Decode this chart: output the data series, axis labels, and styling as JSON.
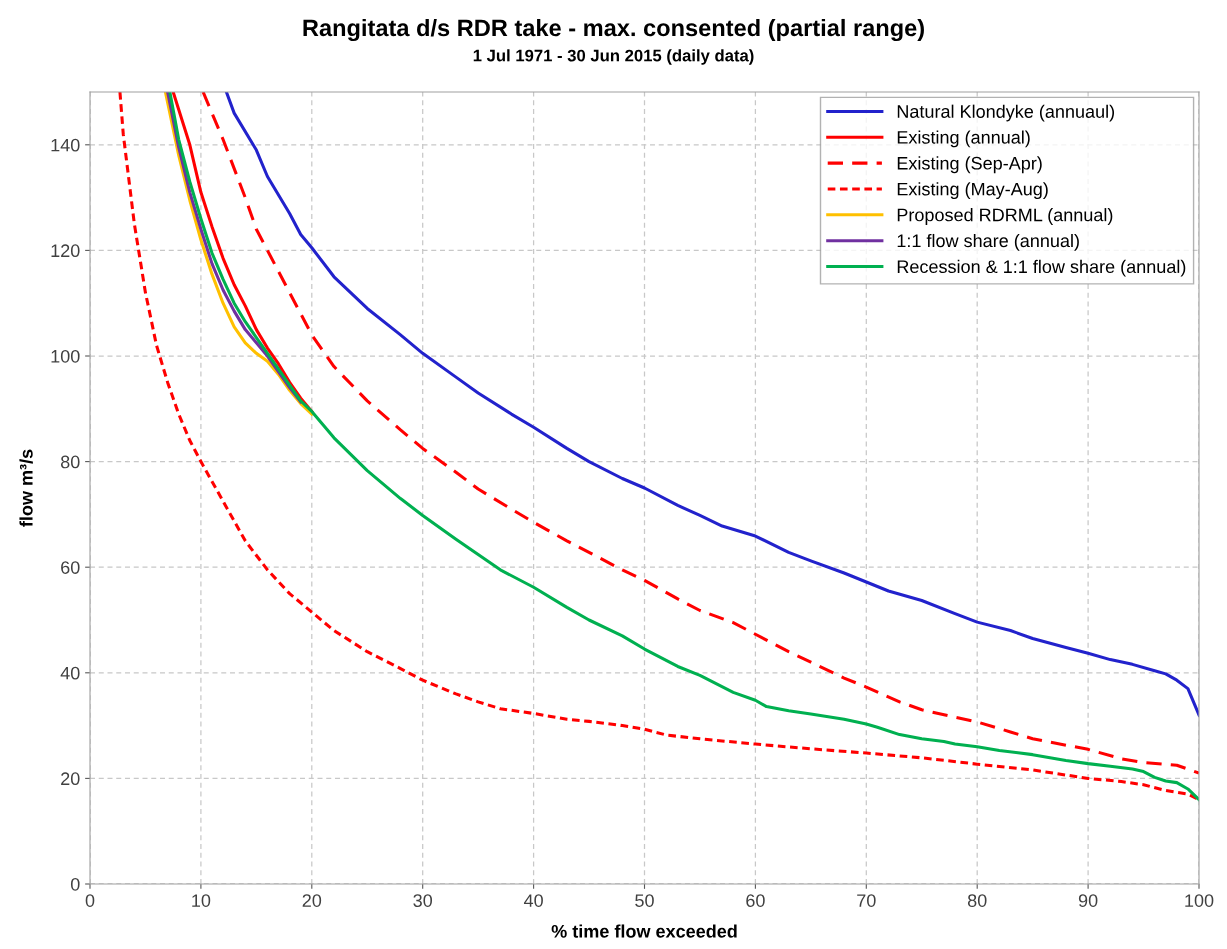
{
  "chart_data": {
    "type": "line",
    "title": "Rangitata d/s RDR take - max. consented (partial range)",
    "subtitle": "1 Jul 1971 - 30 Jun 2015 (daily data)",
    "xlabel": "% time flow exceeded",
    "ylabel": "flow m³/s",
    "xlim": [
      0,
      100
    ],
    "ylim": [
      0,
      150
    ],
    "xticks": [
      0,
      10,
      20,
      30,
      40,
      50,
      60,
      70,
      80,
      90,
      100
    ],
    "yticks": [
      0,
      20,
      40,
      60,
      80,
      100,
      120,
      140
    ],
    "grid": true,
    "legend": "top right",
    "series": [
      {
        "name": "Natural Klondyke (annuaul)",
        "color": "#2222cc",
        "line_style": "solid",
        "x": [
          12.3,
          13,
          15,
          16,
          18,
          19,
          20,
          22,
          25,
          28,
          30,
          33,
          35,
          38,
          40,
          43,
          45,
          48,
          50,
          53,
          55,
          57,
          60,
          63,
          65,
          68,
          70,
          72,
          75,
          78,
          80,
          83,
          85,
          88,
          90,
          92,
          94,
          96,
          97,
          98,
          99,
          100
        ],
        "values": [
          150,
          146,
          139,
          134,
          127,
          123,
          120.5,
          115,
          109,
          104,
          100.5,
          96,
          93,
          89,
          86.5,
          82.5,
          80,
          76.8,
          75,
          71.7,
          69.8,
          67.8,
          65.9,
          62.8,
          61.2,
          58.9,
          57.2,
          55.5,
          53.7,
          51.2,
          49.6,
          48,
          46.5,
          44.8,
          43.7,
          42.5,
          41.6,
          40.4,
          39.8,
          38.6,
          37,
          32
        ]
      },
      {
        "name": "Existing (annual)",
        "color": "#ff0000",
        "line_style": "solid",
        "x": [
          7.5,
          9,
          10,
          11,
          12,
          13,
          14,
          15,
          16,
          17,
          18,
          19,
          20
        ],
        "values": [
          150,
          140,
          131,
          124.5,
          118.5,
          113.5,
          109.5,
          105,
          101.5,
          98.5,
          95,
          92,
          89.5
        ]
      },
      {
        "name": "Existing (Sep-Apr)",
        "color": "#ff0000",
        "line_style": "dashed",
        "x": [
          10.2,
          12,
          14,
          15,
          17,
          20,
          22,
          25,
          28,
          30,
          33,
          35,
          38,
          40,
          43,
          45,
          48,
          50,
          53,
          55,
          58,
          60,
          63,
          65,
          68,
          70,
          73,
          75,
          78,
          80,
          83,
          85,
          88,
          90,
          93,
          95,
          98,
          100
        ],
        "values": [
          150,
          141,
          130,
          124,
          116,
          104,
          98,
          91.5,
          86,
          82.5,
          78,
          74.8,
          71,
          68.5,
          65,
          62.8,
          59.5,
          57.5,
          54,
          51.8,
          49.5,
          47.3,
          44,
          42,
          39,
          37.3,
          34.5,
          33,
          31.6,
          30.7,
          28.8,
          27.5,
          26.3,
          25.5,
          23.7,
          23,
          22.5,
          21
        ]
      },
      {
        "name": "Existing (May-Aug)",
        "color": "#ff0000",
        "line_style": "dotted",
        "x": [
          2.7,
          3,
          4,
          5,
          6,
          7,
          8,
          9,
          10,
          12,
          14,
          16,
          18,
          20,
          22,
          25,
          28,
          30,
          33,
          35,
          37,
          40,
          43,
          45,
          48,
          50,
          52,
          55,
          60,
          65,
          70,
          75,
          80,
          85,
          90,
          93,
          95,
          97,
          99,
          100
        ],
        "values": [
          150,
          142,
          125,
          112,
          102,
          95,
          89,
          84,
          80,
          72.5,
          65,
          59.5,
          55,
          51.5,
          48,
          44,
          40.8,
          38.6,
          36,
          34.5,
          33.2,
          32.3,
          31.2,
          30.8,
          30,
          29.3,
          28.2,
          27.5,
          26.5,
          25.6,
          24.8,
          23.9,
          22.7,
          21.6,
          20,
          19.4,
          18.8,
          17.7,
          17,
          16
        ]
      },
      {
        "name": "Proposed RDRML (annual)",
        "color": "#ffc000",
        "line_style": "solid",
        "x": [
          6.8,
          8,
          9,
          10,
          11,
          12,
          13,
          14,
          15,
          16,
          17,
          18,
          19,
          20
        ],
        "values": [
          150,
          138,
          129.5,
          122,
          115.5,
          110,
          105.5,
          102.5,
          100.5,
          99,
          96.5,
          93.5,
          91,
          89
        ]
      },
      {
        "name": "1:1 flow share (annual)",
        "color": "#7030a0",
        "line_style": "solid",
        "x": [
          7,
          8,
          9,
          10,
          11,
          12,
          13,
          14,
          15,
          16,
          17,
          18,
          19
        ],
        "values": [
          150,
          139.5,
          131,
          124,
          117.5,
          112.5,
          108.5,
          105,
          102.5,
          100,
          97,
          94,
          91.3
        ]
      },
      {
        "name": "Recession & 1:1 flow share (annual)",
        "color": "#00b050",
        "line_style": "solid",
        "x": [
          7.2,
          8,
          9,
          10,
          11,
          12,
          13,
          14,
          15,
          16,
          17,
          18,
          19,
          20,
          22,
          25,
          28,
          30,
          33,
          35,
          37,
          40,
          43,
          45,
          48,
          50,
          53,
          55,
          58,
          60,
          61,
          63,
          65,
          68,
          70,
          71,
          73,
          75,
          77,
          78,
          80,
          82,
          85,
          88,
          90,
          92,
          94,
          95,
          96,
          97,
          98,
          99,
          100
        ],
        "values": [
          150,
          141,
          133,
          126,
          119.5,
          114.5,
          110,
          106.5,
          103.5,
          100.5,
          97.5,
          94.5,
          91.5,
          89.5,
          84.5,
          78.3,
          73,
          69.8,
          65.3,
          62.4,
          59.5,
          56.2,
          52.4,
          50,
          47,
          44.5,
          41.2,
          39.5,
          36.3,
          34.8,
          33.6,
          32.8,
          32.2,
          31.2,
          30.3,
          29.7,
          28.3,
          27.5,
          27,
          26.5,
          26,
          25.3,
          24.5,
          23.4,
          22.8,
          22.3,
          21.8,
          21.3,
          20.2,
          19.5,
          19.2,
          18,
          16
        ]
      }
    ]
  }
}
